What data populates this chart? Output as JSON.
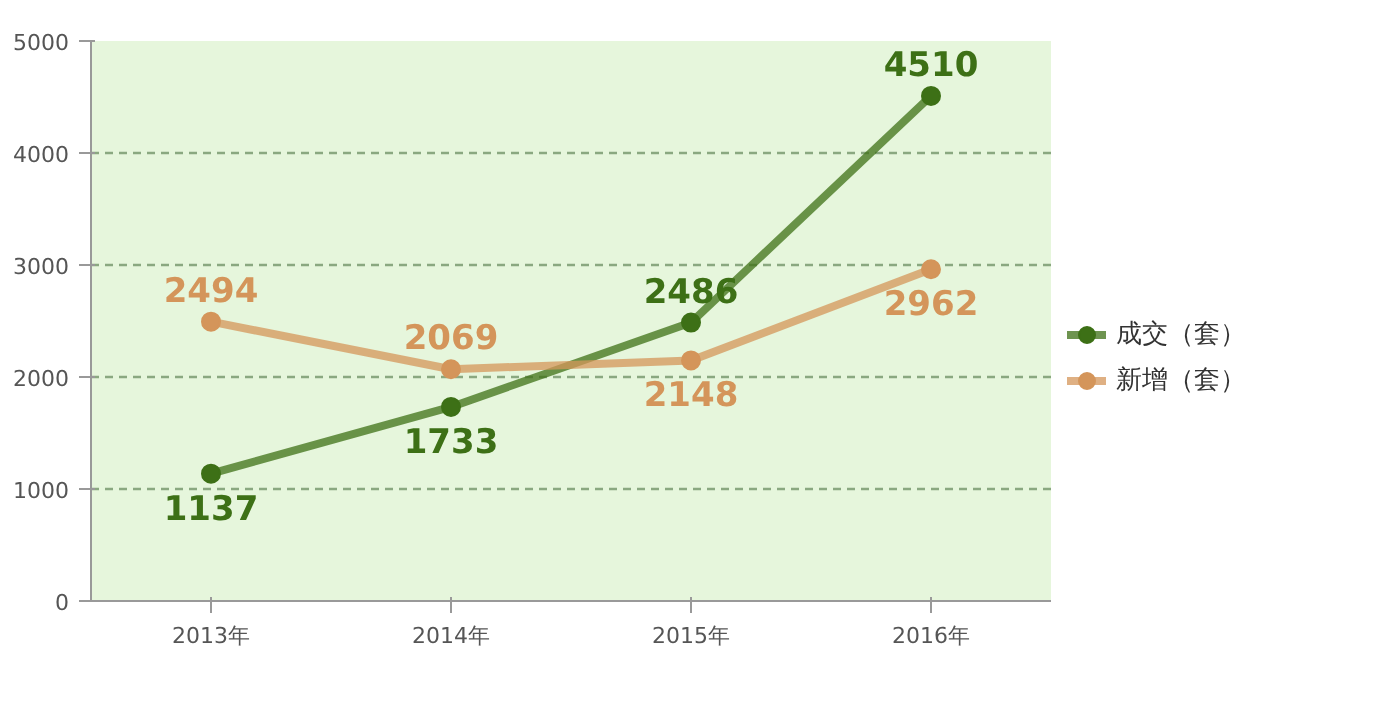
{
  "chart_data": {
    "type": "line",
    "categories": [
      "2013年",
      "2014年",
      "2015年",
      "2016年"
    ],
    "series": [
      {
        "name": "成交（套）",
        "color": "#3d7016",
        "values": [
          1137,
          1733,
          2486,
          4510
        ]
      },
      {
        "name": "新增（套）",
        "color": "#d4955a",
        "values": [
          2494,
          2069,
          2148,
          2962
        ]
      }
    ],
    "ylim": [
      0,
      5000
    ],
    "yticks": [
      0,
      1000,
      2000,
      3000,
      4000,
      5000
    ],
    "grid": "y",
    "legend": "right",
    "marker": "circle",
    "line_style": "solid",
    "data_labels": true
  }
}
